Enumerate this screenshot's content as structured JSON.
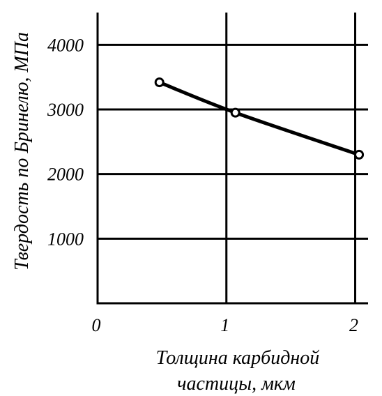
{
  "chart_data": {
    "type": "line",
    "xlabel_lines": [
      "Толщина карбидной",
      "частицы, мкм"
    ],
    "ylabel": "Твердость по Бринелю, МПа",
    "x_ticks": [
      0,
      1,
      2
    ],
    "x_tick_labels": [
      "0",
      "1",
      "2"
    ],
    "y_ticks": [
      1000,
      2000,
      3000,
      4000
    ],
    "y_tick_labels": [
      "1000",
      "2000",
      "3000",
      "4000"
    ],
    "xlim": [
      0,
      2.1
    ],
    "ylim": [
      0,
      4500
    ],
    "grid": true,
    "series": [
      {
        "x": [
          0.48,
          1.07,
          2.03
        ],
        "values": [
          3420,
          2950,
          2300
        ],
        "markers": "open-circle"
      }
    ]
  }
}
